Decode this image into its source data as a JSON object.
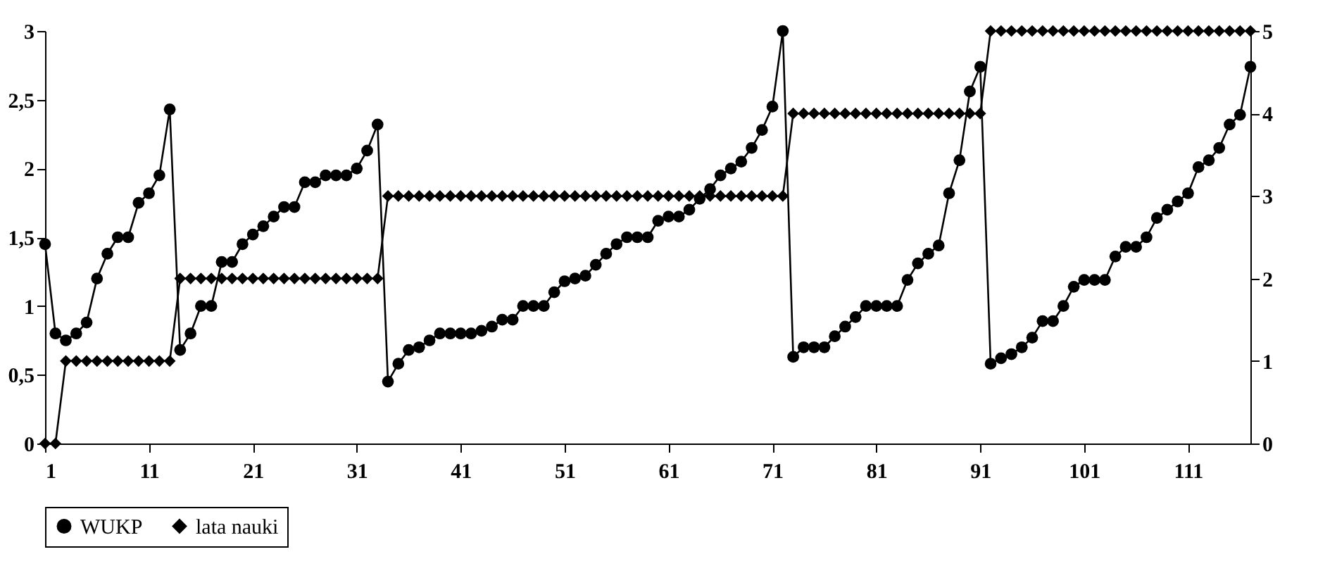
{
  "chart_data": {
    "type": "line",
    "x": [
      1,
      2,
      3,
      4,
      5,
      6,
      7,
      8,
      9,
      10,
      11,
      12,
      13,
      14,
      15,
      16,
      17,
      18,
      19,
      20,
      21,
      22,
      23,
      24,
      25,
      26,
      27,
      28,
      29,
      30,
      31,
      32,
      33,
      34,
      35,
      36,
      37,
      38,
      39,
      40,
      41,
      42,
      43,
      44,
      45,
      46,
      47,
      48,
      49,
      50,
      51,
      52,
      53,
      54,
      55,
      56,
      57,
      58,
      59,
      60,
      61,
      62,
      63,
      64,
      65,
      66,
      67,
      68,
      69,
      70,
      71,
      72,
      73,
      74,
      75,
      76,
      77,
      78,
      79,
      80,
      81,
      82,
      83,
      84,
      85,
      86,
      87,
      88,
      89,
      90,
      91,
      92,
      93,
      94,
      95,
      96,
      97,
      98,
      99,
      100,
      101,
      102,
      103,
      104,
      105,
      106,
      107,
      108,
      109,
      110,
      111,
      112,
      113,
      114,
      115,
      116,
      117
    ],
    "series": [
      {
        "name": "WUKP",
        "color": "#000000",
        "marker": "circle",
        "values": [
          1.45,
          0.8,
          0.75,
          0.8,
          0.88,
          1.2,
          1.38,
          1.5,
          1.5,
          1.75,
          1.82,
          1.95,
          2.43,
          0.68,
          0.8,
          1.0,
          1.0,
          1.32,
          1.32,
          1.45,
          1.52,
          1.58,
          1.65,
          1.72,
          1.72,
          1.9,
          1.9,
          1.95,
          1.95,
          1.95,
          2.0,
          2.13,
          2.32,
          0.45,
          0.58,
          0.68,
          0.7,
          0.75,
          0.8,
          0.8,
          0.8,
          0.8,
          0.82,
          0.85,
          0.9,
          0.9,
          1.0,
          1.0,
          1.0,
          1.1,
          1.18,
          1.2,
          1.22,
          1.3,
          1.38,
          1.45,
          1.5,
          1.5,
          1.5,
          1.62,
          1.65,
          1.65,
          1.7,
          1.78,
          1.85,
          1.95,
          2.0,
          2.05,
          2.15,
          2.28,
          2.45,
          3.0,
          0.63,
          0.7,
          0.7,
          0.7,
          0.78,
          0.85,
          0.92,
          1.0,
          1.0,
          1.0,
          1.0,
          1.19,
          1.31,
          1.38,
          1.44,
          1.82,
          2.06,
          2.56,
          2.74,
          0.58,
          0.62,
          0.65,
          0.7,
          0.77,
          0.89,
          0.89,
          1.0,
          1.14,
          1.19,
          1.19,
          1.19,
          1.36,
          1.43,
          1.43,
          1.5,
          1.64,
          1.7,
          1.76,
          1.82,
          2.01,
          2.06,
          2.15,
          2.32,
          2.39,
          2.74
        ]
      },
      {
        "name": "lata nauki",
        "color": "#000000",
        "marker": "diamond",
        "axis": "y2",
        "values": [
          0,
          0,
          1,
          1,
          1,
          1,
          1,
          1,
          1,
          1,
          1,
          1,
          1,
          2,
          2,
          2,
          2,
          2,
          2,
          2,
          2,
          2,
          2,
          2,
          2,
          2,
          2,
          2,
          2,
          2,
          2,
          2,
          2,
          3,
          3,
          3,
          3,
          3,
          3,
          3,
          3,
          3,
          3,
          3,
          3,
          3,
          3,
          3,
          3,
          3,
          3,
          3,
          3,
          3,
          3,
          3,
          3,
          3,
          3,
          3,
          3,
          3,
          3,
          3,
          3,
          3,
          3,
          3,
          3,
          3,
          3,
          3,
          4,
          4,
          4,
          4,
          4,
          4,
          4,
          4,
          4,
          4,
          4,
          4,
          4,
          4,
          4,
          4,
          4,
          4,
          4,
          5,
          5,
          5,
          5,
          5,
          5,
          5,
          5,
          5,
          5,
          5,
          5,
          5,
          5,
          5,
          5,
          5,
          5,
          5,
          5,
          5,
          5,
          5,
          5,
          5,
          5
        ]
      }
    ],
    "xlim": [
      1,
      117
    ],
    "xticks": [
      1,
      11,
      21,
      31,
      41,
      51,
      61,
      71,
      81,
      91,
      101,
      111
    ],
    "ylim": [
      0,
      3
    ],
    "yticks": [
      0,
      {
        "value": 0.5,
        "label": "0,5"
      },
      1,
      {
        "value": 1.5,
        "label": "1,5"
      },
      2,
      {
        "value": 2.5,
        "label": "2,5"
      },
      3
    ],
    "y2lim": [
      0,
      5
    ],
    "y2ticks": [
      0,
      1,
      2,
      3,
      4,
      5
    ],
    "legend": "bottom",
    "grid": false
  }
}
